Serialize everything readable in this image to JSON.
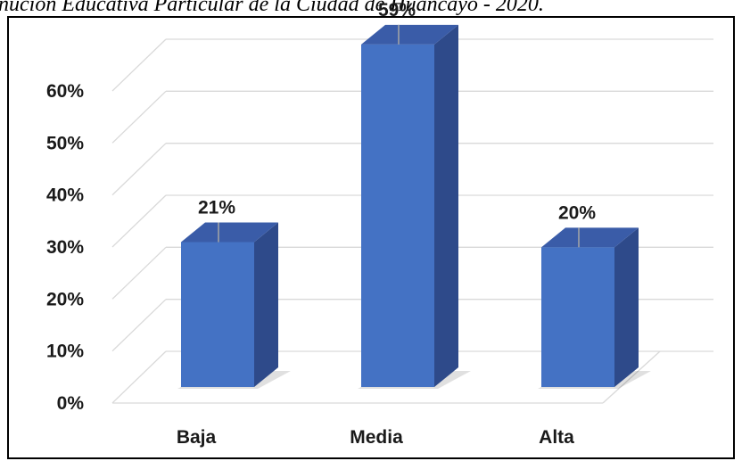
{
  "caption": "nución Educativa Particular de la Ciudad de Huancayo - 2020.",
  "chart_data": {
    "type": "bar",
    "style": "3d-column",
    "categories": [
      "Baja",
      "Media",
      "Alta"
    ],
    "values": [
      21,
      59,
      20
    ],
    "value_labels": [
      "21%",
      "59%",
      "20%"
    ],
    "y_ticks": [
      "0%",
      "10%",
      "20%",
      "30%",
      "40%",
      "50%",
      "60%"
    ],
    "ylim": [
      0,
      60
    ],
    "grid": true,
    "legend": "none",
    "bar_color": "#4472c4",
    "bar_side_color": "#2e4a8a",
    "bar_top_color": "#3a5ca8",
    "grid_color": "#d9d9d9"
  }
}
